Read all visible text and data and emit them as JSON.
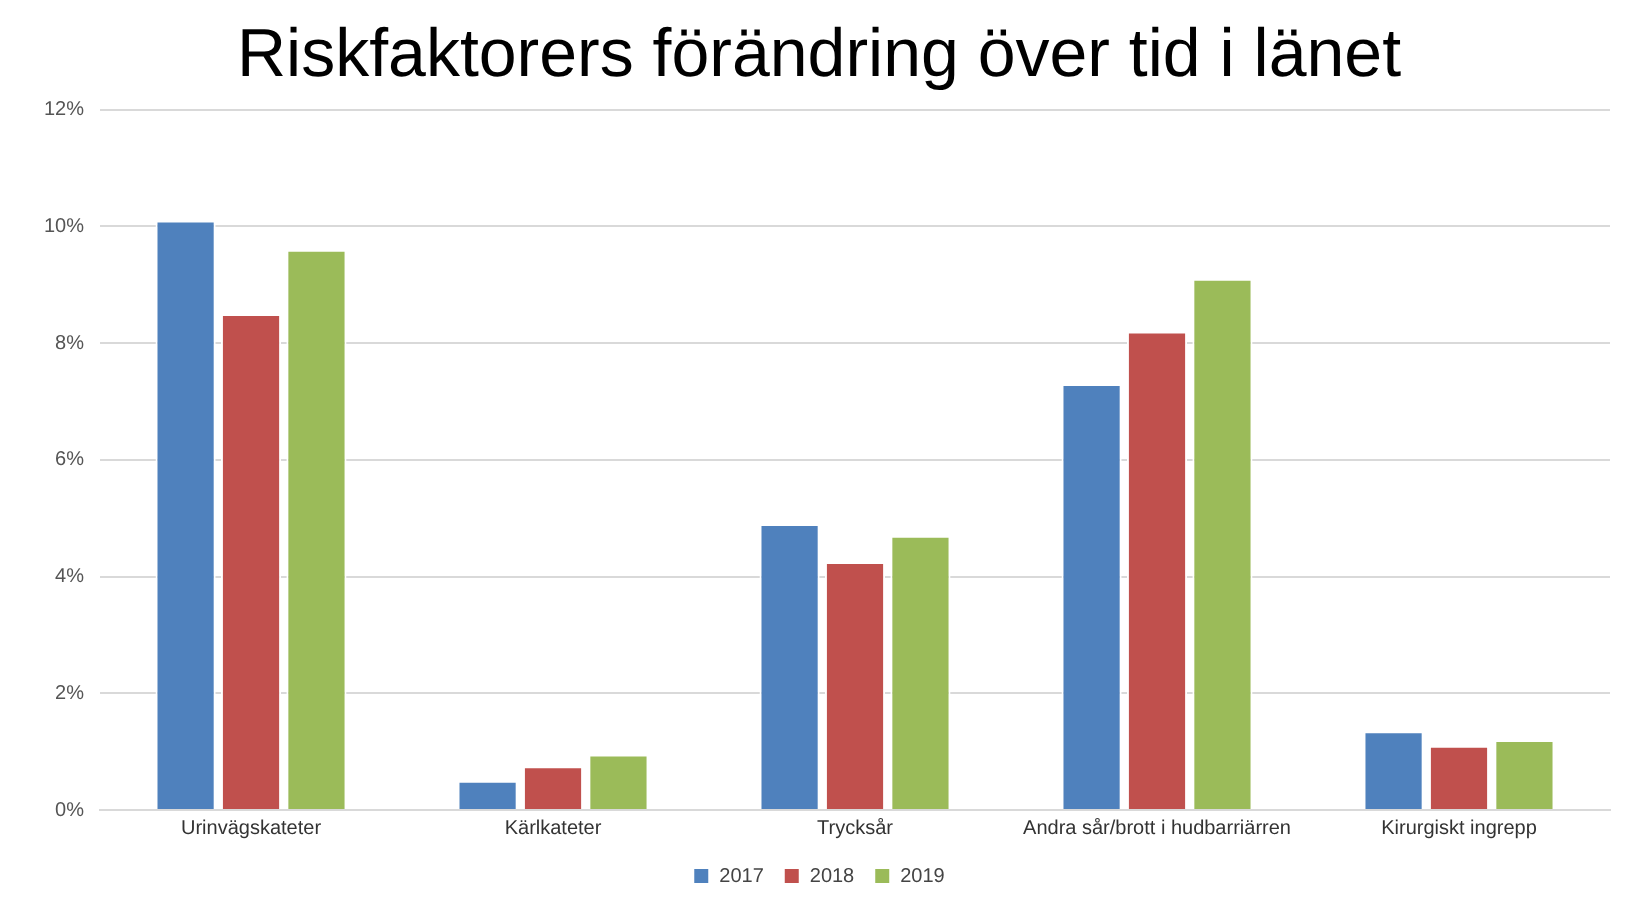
{
  "chart_data": {
    "type": "bar",
    "title": "Riskfaktorers förändring över tid i länet",
    "categories": [
      "Urinvägskateter",
      "Kärlkateter",
      "Trycksår",
      "Andra sår/brott i hudbarriärren",
      "Kirurgiskt ingrepp"
    ],
    "series": [
      {
        "name": "2017",
        "color": "#4f81bd",
        "values": [
          10.1,
          0.5,
          4.9,
          7.3,
          1.35
        ]
      },
      {
        "name": "2018",
        "color": "#c0504d",
        "values": [
          8.5,
          0.75,
          4.25,
          8.2,
          1.1
        ]
      },
      {
        "name": "2019",
        "color": "#9bbb59",
        "values": [
          9.6,
          0.95,
          4.7,
          9.1,
          1.2
        ]
      }
    ],
    "ylim": [
      0,
      12
    ],
    "yticks": [
      {
        "value": 0,
        "label": "0%"
      },
      {
        "value": 2,
        "label": "2%"
      },
      {
        "value": 4,
        "label": "4%"
      },
      {
        "value": 6,
        "label": "6%"
      },
      {
        "value": 8,
        "label": "8%"
      },
      {
        "value": 10,
        "label": "10%"
      },
      {
        "value": 12,
        "label": "12%"
      }
    ],
    "grid": "y",
    "legend": "bottom"
  }
}
